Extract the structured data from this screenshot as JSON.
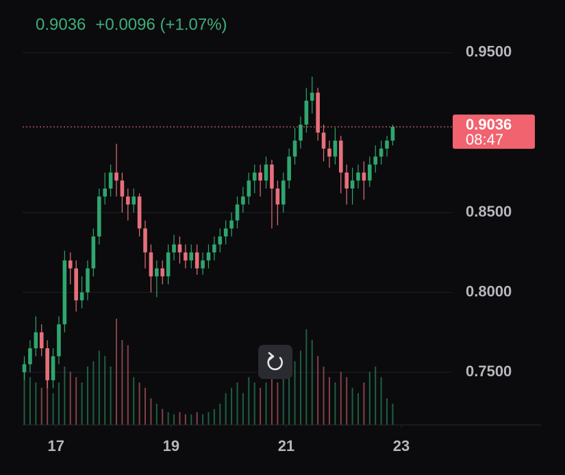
{
  "chart_data": {
    "type": "candlestick",
    "last_price": 0.9036,
    "change_label": "+0.0096 (+1.07%)",
    "countdown": "08:47",
    "up_color": "#2fa56f",
    "down_color": "#e5707a",
    "grid": true,
    "ylim": [
      0.717,
      0.983
    ],
    "yticks": [
      {
        "value": 0.95,
        "label": "0.9500"
      },
      {
        "value": 0.85,
        "label": "0.8500"
      },
      {
        "value": 0.8,
        "label": "0.8000"
      },
      {
        "value": 0.75,
        "label": "0.7500"
      }
    ],
    "xlim": [
      16.42,
      23.88
    ],
    "xticks": [
      17,
      19,
      21,
      23
    ],
    "x": [
      16.45,
      16.55,
      16.65,
      16.75,
      16.85,
      16.95,
      17.05,
      17.15,
      17.25,
      17.35,
      17.45,
      17.55,
      17.65,
      17.75,
      17.85,
      17.95,
      18.05,
      18.15,
      18.25,
      18.35,
      18.45,
      18.55,
      18.65,
      18.75,
      18.85,
      18.95,
      19.05,
      19.15,
      19.25,
      19.35,
      19.45,
      19.55,
      19.65,
      19.75,
      19.85,
      19.95,
      20.05,
      20.15,
      20.25,
      20.35,
      20.45,
      20.55,
      20.65,
      20.75,
      20.85,
      20.95,
      21.05,
      21.15,
      21.25,
      21.35,
      21.45,
      21.55,
      21.65,
      21.75,
      21.85,
      21.95,
      22.05,
      22.15,
      22.25,
      22.35,
      22.45,
      22.55,
      22.65,
      22.75,
      22.85
    ],
    "open": [
      0.75,
      0.755,
      0.765,
      0.775,
      0.765,
      0.745,
      0.76,
      0.78,
      0.82,
      0.815,
      0.795,
      0.8,
      0.815,
      0.835,
      0.86,
      0.865,
      0.875,
      0.87,
      0.86,
      0.855,
      0.86,
      0.84,
      0.825,
      0.81,
      0.815,
      0.81,
      0.825,
      0.83,
      0.825,
      0.82,
      0.825,
      0.815,
      0.82,
      0.825,
      0.83,
      0.835,
      0.84,
      0.845,
      0.855,
      0.86,
      0.87,
      0.875,
      0.87,
      0.88,
      0.865,
      0.855,
      0.87,
      0.885,
      0.895,
      0.905,
      0.92,
      0.925,
      0.9,
      0.89,
      0.885,
      0.895,
      0.875,
      0.865,
      0.87,
      0.875,
      0.87,
      0.88,
      0.885,
      0.89,
      0.895
    ],
    "high": [
      0.76,
      0.77,
      0.785,
      0.78,
      0.77,
      0.765,
      0.785,
      0.826,
      0.825,
      0.82,
      0.81,
      0.82,
      0.84,
      0.865,
      0.875,
      0.88,
      0.893,
      0.875,
      0.865,
      0.865,
      0.862,
      0.845,
      0.83,
      0.82,
      0.82,
      0.83,
      0.836,
      0.835,
      0.83,
      0.83,
      0.83,
      0.825,
      0.83,
      0.835,
      0.84,
      0.845,
      0.85,
      0.86,
      0.866,
      0.875,
      0.88,
      0.88,
      0.885,
      0.883,
      0.87,
      0.875,
      0.89,
      0.903,
      0.91,
      0.928,
      0.935,
      0.928,
      0.905,
      0.895,
      0.903,
      0.898,
      0.88,
      0.878,
      0.88,
      0.882,
      0.885,
      0.892,
      0.895,
      0.898,
      0.905
    ],
    "low": [
      0.745,
      0.75,
      0.76,
      0.76,
      0.74,
      0.74,
      0.755,
      0.775,
      0.805,
      0.788,
      0.79,
      0.795,
      0.81,
      0.83,
      0.855,
      0.86,
      0.86,
      0.85,
      0.845,
      0.85,
      0.835,
      0.815,
      0.8,
      0.797,
      0.805,
      0.805,
      0.82,
      0.818,
      0.815,
      0.815,
      0.811,
      0.811,
      0.815,
      0.82,
      0.825,
      0.83,
      0.835,
      0.84,
      0.85,
      0.855,
      0.862,
      0.86,
      0.865,
      0.84,
      0.842,
      0.85,
      0.865,
      0.88,
      0.89,
      0.9,
      0.912,
      0.895,
      0.882,
      0.878,
      0.88,
      0.862,
      0.855,
      0.855,
      0.865,
      0.858,
      0.866,
      0.875,
      0.88,
      0.885,
      0.892
    ],
    "close": [
      0.755,
      0.765,
      0.775,
      0.765,
      0.745,
      0.76,
      0.78,
      0.82,
      0.815,
      0.795,
      0.8,
      0.815,
      0.835,
      0.86,
      0.865,
      0.875,
      0.87,
      0.86,
      0.855,
      0.86,
      0.84,
      0.825,
      0.81,
      0.815,
      0.81,
      0.825,
      0.83,
      0.825,
      0.82,
      0.825,
      0.815,
      0.82,
      0.825,
      0.83,
      0.835,
      0.84,
      0.845,
      0.855,
      0.86,
      0.87,
      0.875,
      0.87,
      0.88,
      0.865,
      0.855,
      0.87,
      0.885,
      0.895,
      0.905,
      0.92,
      0.925,
      0.9,
      0.89,
      0.885,
      0.895,
      0.875,
      0.865,
      0.87,
      0.875,
      0.87,
      0.88,
      0.885,
      0.89,
      0.895,
      0.9036
    ],
    "volume": [
      60,
      45,
      40,
      35,
      50,
      30,
      40,
      55,
      50,
      45,
      40,
      55,
      60,
      70,
      65,
      55,
      100,
      80,
      75,
      45,
      40,
      35,
      25,
      20,
      15,
      12,
      10,
      12,
      10,
      10,
      12,
      10,
      12,
      15,
      20,
      30,
      35,
      40,
      30,
      45,
      40,
      35,
      40,
      45,
      40,
      45,
      50,
      60,
      70,
      90,
      80,
      65,
      55,
      45,
      40,
      50,
      45,
      35,
      30,
      40,
      50,
      55,
      45,
      25,
      20
    ]
  }
}
